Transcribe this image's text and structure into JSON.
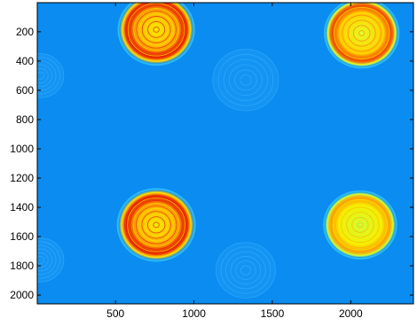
{
  "chart_data": {
    "type": "heatmap",
    "title": "",
    "xlabel": "",
    "ylabel": "",
    "xlim": [
      1,
      2400
    ],
    "ylim": [
      2060,
      1
    ],
    "y_axis_reversed": true,
    "colormap": "jet",
    "background_color": "#0a8cf0",
    "x_ticks": [
      500,
      1000,
      1500,
      2000
    ],
    "y_ticks": [
      200,
      400,
      600,
      800,
      1000,
      1200,
      1400,
      1600,
      1800,
      2000
    ],
    "bright_spots": [
      {
        "cx": 760,
        "cy": 185,
        "r": 235,
        "level": "high"
      },
      {
        "cx": 2070,
        "cy": 210,
        "r": 230,
        "level": "medium-high"
      },
      {
        "cx": 760,
        "cy": 1520,
        "r": 240,
        "level": "high"
      },
      {
        "cx": 2060,
        "cy": 1520,
        "r": 225,
        "level": "medium"
      }
    ],
    "faint_rings": [
      {
        "cx": 1330,
        "cy": 530,
        "r": 210
      },
      {
        "cx": 20,
        "cy": 500,
        "r": 150
      },
      {
        "cx": 1330,
        "cy": 1830,
        "r": 190
      },
      {
        "cx": 20,
        "cy": 1760,
        "r": 150
      }
    ]
  }
}
